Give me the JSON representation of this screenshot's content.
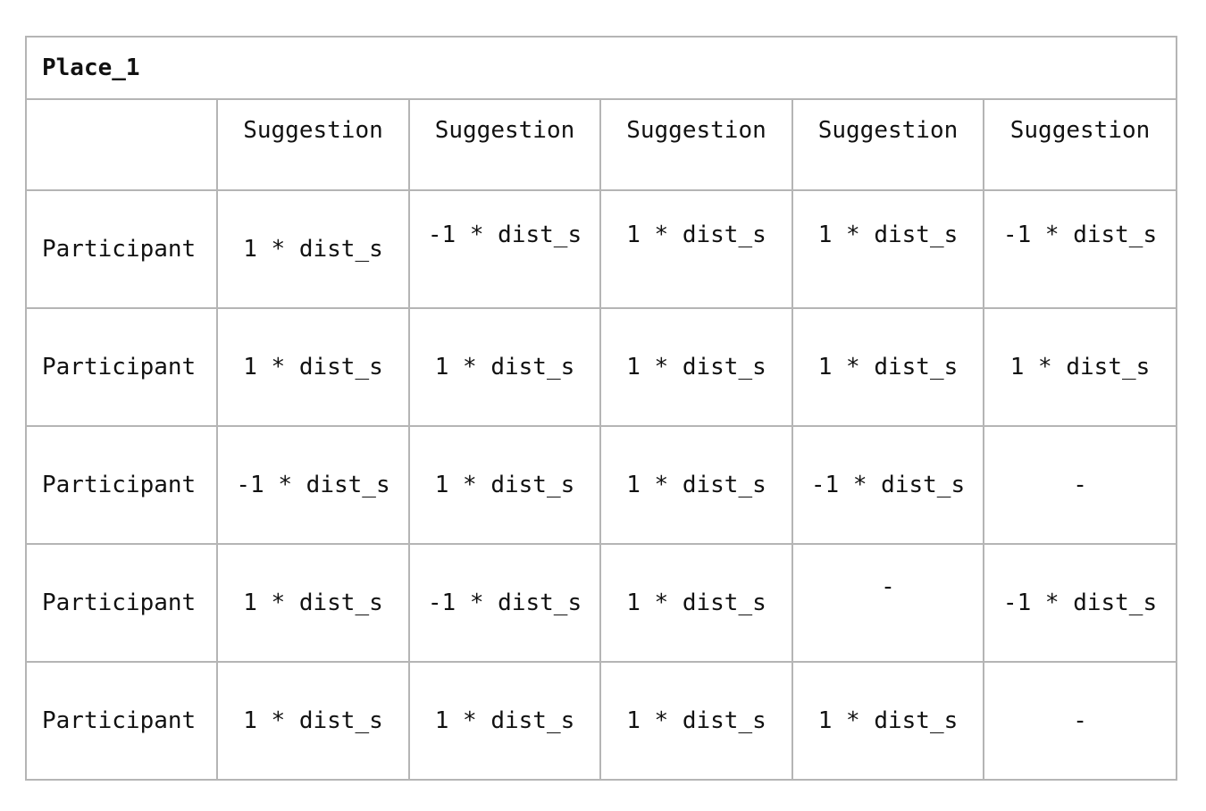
{
  "table": {
    "title": "Place_1",
    "corner": "",
    "headers": [
      "Suggestion",
      "Suggestion",
      "Suggestion",
      "Suggestion",
      "Suggestion"
    ],
    "rows": [
      {
        "label": "Participant",
        "cells": [
          "1 * dist_s",
          "-1 * dist_s",
          "1 * dist_s",
          "1 * dist_s",
          "-1 * dist_s"
        ]
      },
      {
        "label": "Participant",
        "cells": [
          "1 * dist_s",
          "1 * dist_s",
          "1 * dist_s",
          "1 * dist_s",
          "1 * dist_s"
        ]
      },
      {
        "label": "Participant",
        "cells": [
          "-1 * dist_s",
          "1 * dist_s",
          "1 * dist_s",
          "-1 * dist_s",
          "-"
        ]
      },
      {
        "label": "Participant",
        "cells": [
          "1 * dist_s",
          "-1 * dist_s",
          "1 * dist_s",
          "-",
          "-1 * dist_s"
        ]
      },
      {
        "label": "Participant",
        "cells": [
          "1 * dist_s",
          "1 * dist_s",
          "1 * dist_s",
          "1 * dist_s",
          "-"
        ]
      }
    ]
  }
}
